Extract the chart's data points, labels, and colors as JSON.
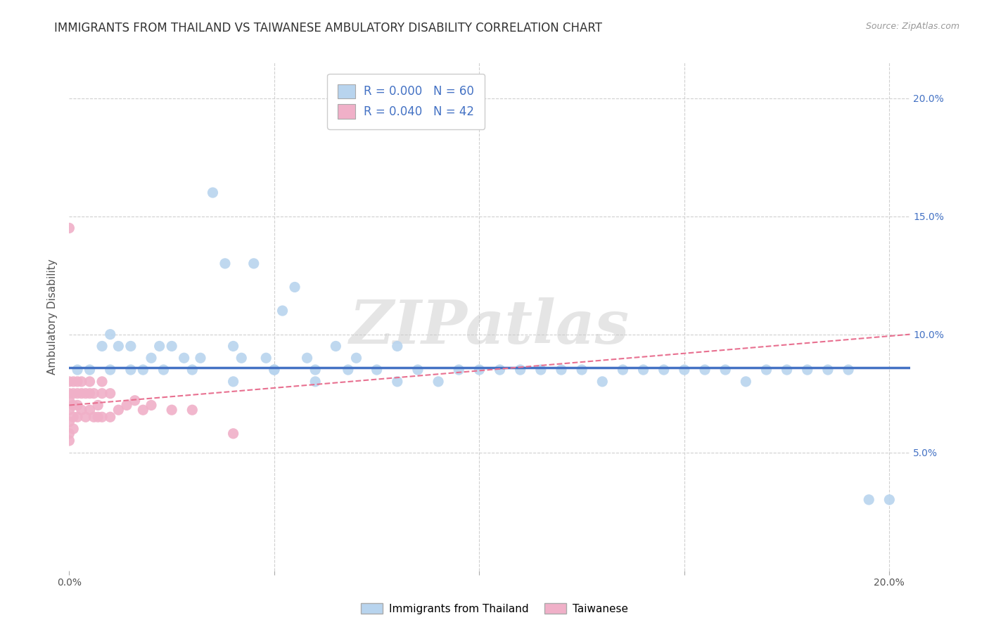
{
  "title": "IMMIGRANTS FROM THAILAND VS TAIWANESE AMBULATORY DISABILITY CORRELATION CHART",
  "source": "Source: ZipAtlas.com",
  "ylabel": "Ambulatory Disability",
  "xlim": [
    0.0,
    0.205
  ],
  "ylim": [
    0.0,
    0.215
  ],
  "xticks": [
    0.0,
    0.05,
    0.1,
    0.15,
    0.2
  ],
  "yticks": [
    0.05,
    0.1,
    0.15,
    0.2
  ],
  "xticklabels": [
    "0.0%",
    "",
    "",
    "",
    "20.0%"
  ],
  "yticklabels_right": [
    "5.0%",
    "10.0%",
    "15.0%",
    "20.0%"
  ],
  "legend_entries": [
    {
      "label": "R = 0.000   N = 60",
      "color": "#b8d4ee"
    },
    {
      "label": "R = 0.040   N = 42",
      "color": "#f0b0c8"
    }
  ],
  "blue_scatter_x": [
    0.002,
    0.005,
    0.008,
    0.01,
    0.01,
    0.012,
    0.015,
    0.015,
    0.018,
    0.02,
    0.022,
    0.023,
    0.025,
    0.028,
    0.03,
    0.032,
    0.035,
    0.038,
    0.04,
    0.042,
    0.045,
    0.048,
    0.05,
    0.052,
    0.055,
    0.058,
    0.06,
    0.065,
    0.068,
    0.07,
    0.075,
    0.08,
    0.085,
    0.09,
    0.095,
    0.1,
    0.105,
    0.11,
    0.115,
    0.12,
    0.125,
    0.13,
    0.135,
    0.14,
    0.145,
    0.15,
    0.155,
    0.16,
    0.165,
    0.17,
    0.175,
    0.18,
    0.185,
    0.19,
    0.195,
    0.2,
    0.04,
    0.05,
    0.06,
    0.08
  ],
  "blue_scatter_y": [
    0.085,
    0.085,
    0.095,
    0.1,
    0.085,
    0.095,
    0.085,
    0.095,
    0.085,
    0.09,
    0.095,
    0.085,
    0.095,
    0.09,
    0.085,
    0.09,
    0.16,
    0.13,
    0.095,
    0.09,
    0.13,
    0.09,
    0.085,
    0.11,
    0.12,
    0.09,
    0.085,
    0.095,
    0.085,
    0.09,
    0.085,
    0.095,
    0.085,
    0.08,
    0.085,
    0.085,
    0.085,
    0.085,
    0.085,
    0.085,
    0.085,
    0.08,
    0.085,
    0.085,
    0.085,
    0.085,
    0.085,
    0.085,
    0.08,
    0.085,
    0.085,
    0.085,
    0.085,
    0.085,
    0.03,
    0.03,
    0.08,
    0.085,
    0.08,
    0.08
  ],
  "pink_scatter_x": [
    0.0,
    0.0,
    0.0,
    0.0,
    0.0,
    0.0,
    0.0,
    0.0,
    0.001,
    0.001,
    0.001,
    0.001,
    0.001,
    0.002,
    0.002,
    0.002,
    0.002,
    0.003,
    0.003,
    0.003,
    0.004,
    0.004,
    0.005,
    0.005,
    0.005,
    0.006,
    0.006,
    0.007,
    0.007,
    0.008,
    0.008,
    0.008,
    0.01,
    0.01,
    0.012,
    0.014,
    0.016,
    0.018,
    0.02,
    0.025,
    0.03,
    0.04
  ],
  "pink_scatter_y": [
    0.08,
    0.075,
    0.072,
    0.068,
    0.063,
    0.058,
    0.055,
    0.145,
    0.08,
    0.075,
    0.07,
    0.065,
    0.06,
    0.08,
    0.075,
    0.07,
    0.065,
    0.08,
    0.075,
    0.068,
    0.075,
    0.065,
    0.08,
    0.075,
    0.068,
    0.075,
    0.065,
    0.07,
    0.065,
    0.08,
    0.075,
    0.065,
    0.075,
    0.065,
    0.068,
    0.07,
    0.072,
    0.068,
    0.07,
    0.068,
    0.068,
    0.058
  ],
  "blue_line_x": [
    0.0,
    0.205
  ],
  "blue_line_y": [
    0.086,
    0.086
  ],
  "pink_line_x": [
    0.0,
    0.205
  ],
  "pink_line_y": [
    0.07,
    0.1
  ],
  "blue_color": "#b8d4ee",
  "blue_line_color": "#4472c4",
  "pink_color": "#f0b0c8",
  "pink_line_color": "#e87090",
  "watermark": "ZIPatlas",
  "scatter_size": 120,
  "background_color": "#ffffff",
  "grid_color": "#d0d0d0"
}
